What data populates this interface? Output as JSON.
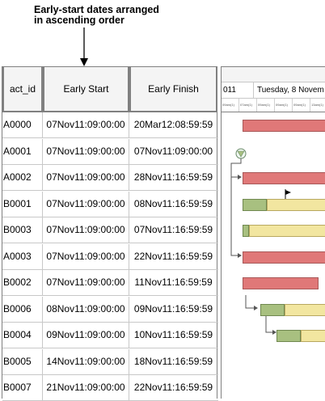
{
  "annotation": {
    "line1": "Early-start dates arranged",
    "line2": "in ascending order"
  },
  "columns": {
    "id": "act_id",
    "early_start": "Early Start",
    "early_finish": "Early Finish"
  },
  "rows": [
    {
      "id": "A0000",
      "es": "07Nov11:09:00:00",
      "ef": "20Mar12:08:59:59"
    },
    {
      "id": "A0001",
      "es": "07Nov11:09:00:00",
      "ef": "07Nov11:09:00:00"
    },
    {
      "id": "A0002",
      "es": "07Nov11:09:00:00",
      "ef": "28Nov11:16:59:59"
    },
    {
      "id": "B0001",
      "es": "07Nov11:09:00:00",
      "ef": "08Nov11:16:59:59"
    },
    {
      "id": "B0003",
      "es": "07Nov11:09:00:00",
      "ef": "07Nov11:16:59:59"
    },
    {
      "id": "A0003",
      "es": "07Nov11:09:00:00",
      "ef": "22Nov11:16:59:59"
    },
    {
      "id": "B0002",
      "es": "07Nov11:09:00:00",
      "ef": "11Nov11:16:59:59"
    },
    {
      "id": "B0006",
      "es": "08Nov11:09:00:00",
      "ef": "09Nov11:16:59:59"
    },
    {
      "id": "B0004",
      "es": "09Nov11:09:00:00",
      "ef": "10Nov11:16:59:59"
    },
    {
      "id": "B0005",
      "es": "14Nov11:09:00:00",
      "ef": "18Nov11:16:59:59"
    },
    {
      "id": "B0007",
      "es": "21Nov11:09:00:00",
      "ef": "22Nov11:16:59:59"
    }
  ],
  "gantt": {
    "header_year_fragment": "011",
    "header_day": "Tuesday, 8 Novem",
    "ticks": [
      "09am(1)",
      "07am(1)",
      "09am(1)",
      "09am(1)",
      "09am(1)",
      "13am(1)"
    ],
    "colors": {
      "critical": "#e07878",
      "noncritical": "#f2e6a0",
      "progress": "#a8c080"
    }
  }
}
